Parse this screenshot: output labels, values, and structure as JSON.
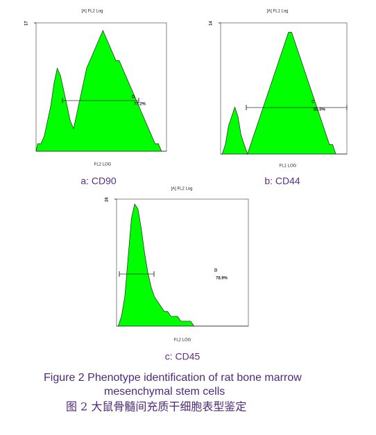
{
  "chart_data": [
    {
      "type": "area",
      "title": "[A] FL2 Log",
      "x_label": "FL2 LOG",
      "caption": "a: CD90",
      "color": "#00ff00",
      "ylim": [
        0,
        17
      ],
      "yticks": [
        17
      ],
      "annotations": [
        "D",
        "77.2%"
      ],
      "values": [
        1,
        1,
        2,
        4,
        6,
        9,
        11,
        10,
        8,
        6,
        4,
        3,
        5,
        7,
        9,
        11,
        12,
        13,
        14,
        15,
        16,
        15,
        14,
        13,
        12,
        12,
        11,
        10,
        9,
        8,
        7,
        6,
        5,
        4,
        3,
        2,
        1,
        1,
        0,
        0
      ]
    },
    {
      "type": "area",
      "title": "[A] FL1 Log",
      "x_label": "FL1 LOG",
      "caption": "b: CD44",
      "color": "#00ff00",
      "ylim": [
        0,
        14
      ],
      "yticks": [
        14
      ],
      "annotations": [
        "C",
        "85.0%"
      ],
      "values": [
        0,
        1,
        3,
        4,
        5,
        4,
        2,
        1,
        0,
        1,
        2,
        3,
        4,
        5,
        6,
        7,
        8,
        9,
        10,
        11,
        12,
        13,
        13,
        12,
        11,
        10,
        9,
        8,
        7,
        6,
        5,
        4,
        3,
        2,
        1,
        1,
        0,
        0,
        0,
        0
      ]
    },
    {
      "type": "area",
      "title": "[A] FL2 Log",
      "x_label": "FL2 LOG",
      "caption": "c: CD45",
      "color": "#00ff00",
      "ylim": [
        0,
        26
      ],
      "yticks": [
        26
      ],
      "annotations": [
        "D",
        "78.9%"
      ],
      "values": [
        0,
        2,
        6,
        14,
        22,
        25,
        24,
        20,
        15,
        11,
        8,
        6,
        5,
        4,
        3,
        3,
        2,
        2,
        2,
        1,
        1,
        1,
        1,
        0,
        0,
        0,
        0,
        0,
        0,
        0,
        0,
        0,
        0,
        0,
        0,
        0,
        0,
        0,
        0,
        0
      ]
    }
  ],
  "figure_caption": {
    "english_1": "Figure 2    Phenotype identification of rat bone marrow",
    "english_2": "mesenchymal stem cells",
    "chinese": "图 2    大鼠骨髓间充质干细胞表型鉴定"
  }
}
